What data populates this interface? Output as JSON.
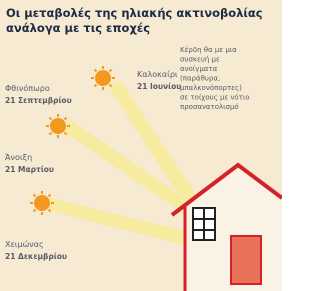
{
  "title": [
    "Οι μεταβολές της ηλιακής ακτινοβολίας",
    "ανάλογα με τις εποχές"
  ],
  "seasons": [
    {
      "name": "Φθινόπωρο",
      "date": "21 Σεπτεμβρίου"
    },
    {
      "name": "Καλοκαίρι",
      "date": "21 Ιουνίου"
    },
    {
      "name": "Άνοιξη",
      "date": "21 Μαρτίου"
    },
    {
      "name": "Χειμώνας",
      "date": "21 Δεκεμβρίου"
    }
  ],
  "note": [
    "Κέρδη θα με μια",
    "συσκευή με",
    "ανοίγματα",
    "(παράθυρα,",
    "μπαλκονόπορτες)",
    "σε τοίχους με νότιο",
    "προσανατολισμό"
  ]
}
